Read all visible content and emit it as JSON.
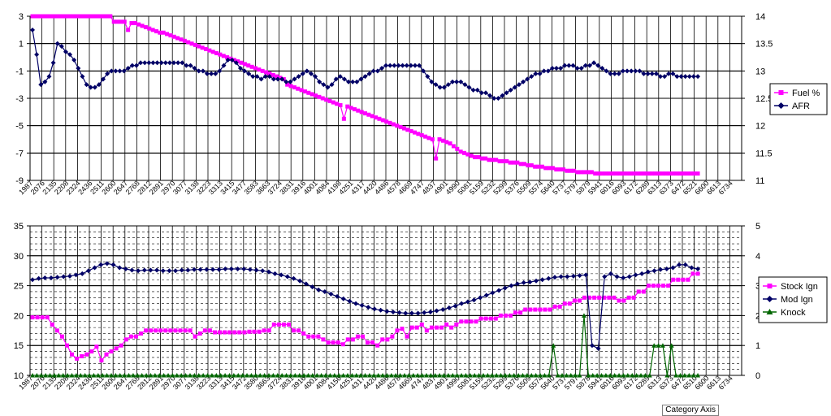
{
  "chart_data": [
    {
      "type": "line",
      "x_ticks": [
        "1987",
        "2076",
        "2135",
        "2208",
        "2324",
        "2436",
        "2511",
        "2600",
        "2647",
        "2768",
        "2812",
        "2891",
        "2970",
        "3077",
        "3138",
        "3223",
        "3313",
        "3415",
        "3477",
        "3583",
        "3663",
        "3724",
        "3831",
        "3916",
        "4001",
        "4084",
        "4198",
        "4251",
        "4317",
        "4420",
        "4486",
        "4578",
        "4669",
        "4747",
        "4837",
        "4901",
        "4990",
        "5081",
        "5159",
        "5232",
        "5299",
        "5376",
        "5509",
        "5574",
        "5640",
        "5737",
        "5797",
        "5879",
        "5941",
        "6016",
        "6093",
        "6172",
        "6289",
        "6313",
        "6373",
        "6472",
        "6521",
        "6600",
        "6613",
        "6734"
      ],
      "y_left": {
        "min": -9,
        "max": 3,
        "ticks": [
          3,
          1,
          -1,
          -3,
          -5,
          -7,
          -9
        ]
      },
      "y_right": {
        "min": 11,
        "max": 14,
        "ticks": [
          "14",
          "13.5",
          "13",
          "12.5",
          "12",
          "11.5",
          "11"
        ]
      },
      "legend": {
        "position": "right",
        "entries": [
          "Fuel %",
          "AFR"
        ]
      },
      "series": [
        {
          "name": "Fuel %",
          "axis": "left",
          "color": "#ff00ff",
          "marker": "square",
          "values": [
            3,
            3,
            3,
            3,
            3,
            3,
            3,
            3,
            3,
            3,
            3,
            3,
            3,
            3,
            3,
            3,
            3,
            3,
            3,
            3,
            3,
            3,
            3,
            2.6,
            2.6,
            2.6,
            2.6,
            2.0,
            2.5,
            2.5,
            2.4,
            2.3,
            2.2,
            2.1,
            2.0,
            1.9,
            1.8,
            1.8,
            1.7,
            1.6,
            1.5,
            1.4,
            1.3,
            1.2,
            1.1,
            1.0,
            0.9,
            0.8,
            0.7,
            0.6,
            0.5,
            0.4,
            0.3,
            0.2,
            0.1,
            0.0,
            -0.1,
            -0.2,
            -0.3,
            -0.4,
            -0.5,
            -0.6,
            -0.7,
            -0.8,
            -0.9,
            -1.0,
            -1.1,
            -1.2,
            -1.3,
            -1.4,
            -1.5,
            -1.6,
            -2.0,
            -2.1,
            -2.2,
            -2.3,
            -2.4,
            -2.5,
            -2.6,
            -2.7,
            -2.8,
            -2.9,
            -3.0,
            -3.1,
            -3.2,
            -3.3,
            -3.4,
            -3.5,
            -4.5,
            -3.6,
            -3.7,
            -3.8,
            -3.9,
            -4.0,
            -4.1,
            -4.2,
            -4.3,
            -4.4,
            -4.5,
            -4.6,
            -4.7,
            -4.8,
            -4.9,
            -5.0,
            -5.1,
            -5.2,
            -5.3,
            -5.4,
            -5.5,
            -5.6,
            -5.7,
            -5.8,
            -5.9,
            -6.0,
            -7.4,
            -6.0,
            -6.1,
            -6.2,
            -6.3,
            -6.5,
            -6.7,
            -6.9,
            -7.0,
            -7.1,
            -7.2,
            -7.3,
            -7.3,
            -7.4,
            -7.4,
            -7.5,
            -7.5,
            -7.5,
            -7.6,
            -7.6,
            -7.6,
            -7.7,
            -7.7,
            -7.7,
            -7.8,
            -7.8,
            -7.9,
            -7.9,
            -8.0,
            -8.0,
            -8.0,
            -8.1,
            -8.1,
            -8.1,
            -8.2,
            -8.2,
            -8.2,
            -8.3,
            -8.3,
            -8.3,
            -8.4,
            -8.4,
            -8.4,
            -8.4,
            -8.4,
            -8.5,
            -8.5,
            -8.5,
            -8.5,
            -8.5,
            -8.5,
            -8.5,
            -8.5,
            -8.5,
            -8.5,
            -8.5,
            -8.5,
            -8.5,
            -8.5,
            -8.5,
            -8.5,
            -8.5,
            -8.5,
            -8.5,
            -8.5,
            -8.5,
            -8.5,
            -8.5,
            -8.5,
            -8.5,
            -8.5,
            -8.5,
            -8.5,
            -8.5,
            -8.5
          ]
        },
        {
          "name": "AFR",
          "axis": "right",
          "color": "#000066",
          "marker": "diamond",
          "values": [
            13.75,
            13.3,
            12.75,
            12.8,
            12.9,
            13.15,
            13.5,
            13.45,
            13.35,
            13.3,
            13.2,
            13.05,
            12.9,
            12.75,
            12.7,
            12.7,
            12.75,
            12.85,
            12.95,
            13,
            13,
            13,
            13,
            13.05,
            13.1,
            13.1,
            13.15,
            13.15,
            13.15,
            13.15,
            13.15,
            13.15,
            13.15,
            13.15,
            13.15,
            13.15,
            13.15,
            13.1,
            13.1,
            13.05,
            13.0,
            13.0,
            12.95,
            12.95,
            12.95,
            13.0,
            13.1,
            13.2,
            13.2,
            13.15,
            13.05,
            13.0,
            12.95,
            12.9,
            12.9,
            12.85,
            12.9,
            12.9,
            12.85,
            12.85,
            12.85,
            12.8,
            12.8,
            12.85,
            12.9,
            12.95,
            13.0,
            12.95,
            12.9,
            12.8,
            12.75,
            12.7,
            12.75,
            12.85,
            12.9,
            12.85,
            12.8,
            12.8,
            12.8,
            12.85,
            12.9,
            12.95,
            13.0,
            13.0,
            13.05,
            13.1,
            13.1,
            13.1,
            13.1,
            13.1,
            13.1,
            13.1,
            13.1,
            13.1,
            13.0,
            12.9,
            12.8,
            12.75,
            12.7,
            12.7,
            12.75,
            12.8,
            12.8,
            12.8,
            12.75,
            12.7,
            12.65,
            12.65,
            12.6,
            12.6,
            12.55,
            12.5,
            12.5,
            12.55,
            12.6,
            12.65,
            12.7,
            12.75,
            12.8,
            12.85,
            12.9,
            12.95,
            12.95,
            13.0,
            13.0,
            13.05,
            13.05,
            13.05,
            13.1,
            13.1,
            13.1,
            13.05,
            13.05,
            13.1,
            13.1,
            13.15,
            13.1,
            13.05,
            13.0,
            12.95,
            12.95,
            12.95,
            13.0,
            13.0,
            13.0,
            13.0,
            13.0,
            12.95,
            12.95,
            12.95,
            12.95,
            12.9,
            12.9,
            12.95,
            12.95,
            12.9,
            12.9,
            12.9,
            12.9,
            12.9,
            12.9
          ]
        }
      ]
    },
    {
      "type": "line",
      "x_ticks": [
        "1987",
        "2076",
        "2135",
        "2208",
        "2324",
        "2436",
        "2511",
        "2600",
        "2647",
        "2768",
        "2812",
        "2891",
        "2970",
        "3077",
        "3138",
        "3223",
        "3313",
        "3415",
        "3472",
        "3580",
        "3663",
        "3724",
        "3831",
        "3916",
        "4001",
        "4084",
        "4156",
        "4251",
        "4317",
        "4420",
        "4486",
        "4578",
        "4669",
        "4747",
        "4837",
        "4901",
        "4990",
        "5081",
        "5159",
        "5232",
        "5299",
        "5376",
        "5509",
        "5574",
        "5640",
        "5737",
        "5797",
        "5878",
        "5941",
        "6016",
        "6093",
        "6172",
        "6289",
        "6313",
        "6373",
        "6472",
        "6510",
        "6600",
        "6613",
        "6734"
      ],
      "y_left": {
        "min": 10,
        "max": 35,
        "ticks": [
          35,
          30,
          25,
          20,
          15,
          10
        ]
      },
      "y_right": {
        "min": 0,
        "max": 5,
        "ticks": [
          "5",
          "4",
          "3",
          "2",
          "1",
          "0"
        ]
      },
      "legend": {
        "position": "right",
        "entries": [
          "Stock Ign",
          "Mod Ign",
          "Knock"
        ]
      },
      "category_axis_label": "Category Axis",
      "series": [
        {
          "name": "Stock Ign",
          "axis": "left",
          "color": "#ff00ff",
          "marker": "square",
          "values": [
            19.7,
            19.7,
            19.7,
            19.7,
            18.5,
            17.5,
            16.5,
            15.0,
            13.5,
            12.8,
            13.2,
            13.5,
            14.0,
            14.8,
            12.5,
            13.5,
            14.0,
            14.5,
            15.0,
            16.0,
            16.5,
            16.5,
            17.0,
            17.5,
            17.5,
            17.5,
            17.5,
            17.5,
            17.5,
            17.5,
            17.5,
            17.5,
            17.5,
            16.5,
            17.0,
            17.5,
            17.5,
            17.2,
            17.2,
            17.2,
            17.2,
            17.2,
            17.2,
            17.2,
            17.3,
            17.3,
            17.3,
            17.5,
            17.5,
            18.5,
            18.5,
            18.5,
            18.5,
            17.5,
            17.5,
            17.0,
            16.5,
            16.5,
            16.5,
            16.0,
            15.5,
            15.5,
            15.5,
            15.2,
            16.0,
            16.0,
            16.5,
            16.5,
            15.5,
            15.5,
            15.0,
            16.0,
            16.0,
            16.5,
            17.5,
            17.8,
            16.5,
            18.0,
            18.0,
            18.5,
            17.5,
            18.0,
            18.0,
            18.0,
            18.5,
            18.0,
            18.5,
            19.0,
            19.0,
            19.0,
            19.0,
            19.5,
            19.5,
            19.5,
            19.5,
            20.0,
            20.0,
            20.0,
            20.5,
            20.5,
            21.0,
            21.0,
            21.0,
            21.0,
            21.0,
            21.0,
            21.5,
            21.5,
            22.0,
            22.0,
            22.5,
            22.5,
            23.0,
            23.0,
            23.0,
            23.0,
            23.0,
            23.0,
            23.0,
            22.5,
            22.5,
            23.0,
            23.0,
            24.0,
            24.0,
            25.0,
            25.0,
            25.0,
            25.0,
            25.0,
            26.0,
            26.0,
            26.0,
            26.0,
            27.0,
            27.0
          ]
        },
        {
          "name": "Mod Ign",
          "axis": "left",
          "color": "#000066",
          "marker": "diamond",
          "values": [
            26.0,
            26.2,
            26.3,
            26.3,
            26.4,
            26.5,
            26.6,
            26.8,
            27.0,
            27.5,
            28.0,
            28.5,
            28.7,
            28.5,
            28.0,
            27.8,
            27.6,
            27.5,
            27.6,
            27.6,
            27.6,
            27.5,
            27.5,
            27.5,
            27.6,
            27.6,
            27.7,
            27.7,
            27.7,
            27.7,
            27.7,
            27.8,
            27.8,
            27.8,
            27.8,
            27.7,
            27.6,
            27.5,
            27.3,
            27.0,
            26.8,
            26.5,
            26.2,
            25.8,
            25.3,
            24.8,
            24.3,
            24.0,
            23.6,
            23.2,
            22.8,
            22.4,
            22.0,
            21.7,
            21.4,
            21.1,
            20.9,
            20.7,
            20.6,
            20.5,
            20.4,
            20.4,
            20.4,
            20.5,
            20.6,
            20.8,
            21.0,
            21.3,
            21.6,
            22.0,
            22.3,
            22.6,
            23.0,
            23.4,
            23.8,
            24.2,
            24.6,
            25.0,
            25.3,
            25.5,
            25.6,
            25.8,
            26.0,
            26.2,
            26.4,
            26.5,
            26.5,
            26.6,
            26.7,
            26.8,
            15.0,
            14.5,
            26.5,
            27.0,
            26.5,
            26.3,
            26.5,
            26.8,
            27.0,
            27.3,
            27.5,
            27.7,
            27.8,
            28.0,
            28.5,
            28.5,
            28.0,
            27.8
          ]
        },
        {
          "name": "Knock",
          "axis": "right",
          "color": "#006600",
          "marker": "triangle",
          "values": [
            0,
            0,
            0,
            0,
            0,
            0,
            0,
            0,
            0,
            0,
            0,
            0,
            0,
            0,
            0,
            0,
            0,
            0,
            0,
            0,
            0,
            0,
            0,
            0,
            0,
            0,
            0,
            0,
            0,
            0,
            0,
            0,
            0,
            0,
            0,
            0,
            0,
            0,
            0,
            0,
            0,
            0,
            0,
            0,
            0,
            0,
            0,
            0,
            0,
            0,
            0,
            0,
            0,
            0,
            0,
            0,
            0,
            0,
            0,
            0,
            0,
            0,
            0,
            0,
            0,
            0,
            0,
            0,
            0,
            0,
            0,
            0,
            0,
            0,
            0,
            0,
            0,
            0,
            0,
            0,
            0,
            0,
            0,
            0,
            0,
            0,
            0,
            0,
            0,
            0,
            0,
            0,
            0,
            0,
            0,
            0,
            0,
            0,
            0,
            0,
            0,
            0,
            0,
            0,
            0,
            0,
            0,
            0,
            0,
            0,
            0,
            0,
            0,
            0,
            0,
            0,
            0,
            0,
            0,
            1,
            0,
            0,
            0,
            0,
            0,
            0,
            2,
            0,
            0,
            0,
            0,
            0,
            0,
            0,
            0,
            0,
            0,
            0,
            0,
            0,
            0,
            0,
            1,
            1,
            1,
            0,
            1,
            0,
            0,
            0,
            0,
            0,
            0
          ]
        }
      ]
    }
  ]
}
